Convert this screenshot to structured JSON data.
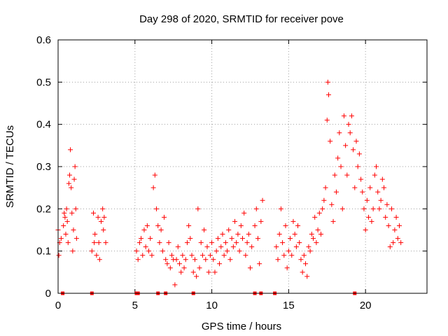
{
  "chart_data": {
    "type": "scatter",
    "title": "Day 298 of 2020, SRMTID for receiver pove",
    "xlabel": "GPS time / hours",
    "ylabel": "SRMTID / TECUs",
    "xlim": [
      0,
      24
    ],
    "ylim": [
      0,
      0.6
    ],
    "xticks": [
      0,
      5,
      10,
      15,
      20
    ],
    "xtick_labels": [
      "0",
      "5",
      "10",
      "15",
      "20"
    ],
    "yticks": [
      0,
      0.1,
      0.2,
      0.3,
      0.4,
      0.5,
      0.6
    ],
    "ytick_labels": [
      "0",
      "0.1",
      "0.2",
      "0.3",
      "0.4",
      "0.5",
      "0.6"
    ],
    "grid": true,
    "legend": "none",
    "marker": "+",
    "color": "#ff0000",
    "series": [
      {
        "name": "SRMTID",
        "points": [
          [
            0.0,
            0.15
          ],
          [
            0.05,
            0.09
          ],
          [
            0.1,
            0.12
          ],
          [
            0.2,
            0.13
          ],
          [
            0.35,
            0.16
          ],
          [
            0.4,
            0.19
          ],
          [
            0.45,
            0.18
          ],
          [
            0.5,
            0.14
          ],
          [
            0.55,
            0.2
          ],
          [
            0.6,
            0.17
          ],
          [
            0.65,
            0.12
          ],
          [
            0.7,
            0.26
          ],
          [
            0.75,
            0.28
          ],
          [
            0.8,
            0.34
          ],
          [
            0.85,
            0.25
          ],
          [
            0.9,
            0.19
          ],
          [
            0.95,
            0.1
          ],
          [
            1.0,
            0.15
          ],
          [
            1.05,
            0.27
          ],
          [
            1.1,
            0.3
          ],
          [
            1.15,
            0.2
          ],
          [
            1.2,
            0.13
          ],
          [
            2.2,
            0.1
          ],
          [
            2.3,
            0.19
          ],
          [
            2.35,
            0.12
          ],
          [
            2.4,
            0.14
          ],
          [
            2.5,
            0.09
          ],
          [
            2.6,
            0.18
          ],
          [
            2.65,
            0.12
          ],
          [
            2.7,
            0.08
          ],
          [
            2.8,
            0.17
          ],
          [
            2.9,
            0.2
          ],
          [
            2.95,
            0.15
          ],
          [
            3.0,
            0.18
          ],
          [
            3.1,
            0.12
          ],
          [
            5.1,
            0.1
          ],
          [
            5.2,
            0.08
          ],
          [
            5.3,
            0.12
          ],
          [
            5.4,
            0.13
          ],
          [
            5.5,
            0.09
          ],
          [
            5.6,
            0.15
          ],
          [
            5.7,
            0.11
          ],
          [
            5.8,
            0.16
          ],
          [
            5.9,
            0.1
          ],
          [
            6.0,
            0.13
          ],
          [
            6.1,
            0.09
          ],
          [
            6.2,
            0.25
          ],
          [
            6.3,
            0.28
          ],
          [
            6.4,
            0.2
          ],
          [
            6.5,
            0.16
          ],
          [
            6.6,
            0.12
          ],
          [
            6.7,
            0.15
          ],
          [
            6.8,
            0.1
          ],
          [
            6.9,
            0.18
          ],
          [
            7.0,
            0.08
          ],
          [
            7.1,
            0.07
          ],
          [
            7.2,
            0.12
          ],
          [
            7.3,
            0.06
          ],
          [
            7.4,
            0.09
          ],
          [
            7.5,
            0.08
          ],
          [
            7.6,
            0.02
          ],
          [
            7.7,
            0.08
          ],
          [
            7.8,
            0.11
          ],
          [
            7.9,
            0.07
          ],
          [
            8.0,
            0.05
          ],
          [
            8.1,
            0.09
          ],
          [
            8.2,
            0.06
          ],
          [
            8.3,
            0.08
          ],
          [
            8.4,
            0.12
          ],
          [
            8.5,
            0.16
          ],
          [
            8.6,
            0.13
          ],
          [
            8.7,
            0.09
          ],
          [
            8.8,
            0.05
          ],
          [
            8.9,
            0.08
          ],
          [
            9.0,
            0.04
          ],
          [
            9.1,
            0.2
          ],
          [
            9.2,
            0.06
          ],
          [
            9.3,
            0.12
          ],
          [
            9.4,
            0.09
          ],
          [
            9.5,
            0.15
          ],
          [
            9.6,
            0.08
          ],
          [
            9.7,
            0.11
          ],
          [
            9.8,
            0.05
          ],
          [
            9.9,
            0.09
          ],
          [
            10.0,
            0.12
          ],
          [
            10.1,
            0.08
          ],
          [
            10.2,
            0.05
          ],
          [
            10.3,
            0.1
          ],
          [
            10.4,
            0.13
          ],
          [
            10.5,
            0.07
          ],
          [
            10.6,
            0.11
          ],
          [
            10.7,
            0.14
          ],
          [
            10.8,
            0.09
          ],
          [
            10.9,
            0.12
          ],
          [
            11.0,
            0.1
          ],
          [
            11.1,
            0.15
          ],
          [
            11.2,
            0.08
          ],
          [
            11.3,
            0.13
          ],
          [
            11.4,
            0.11
          ],
          [
            11.5,
            0.17
          ],
          [
            11.6,
            0.12
          ],
          [
            11.7,
            0.14
          ],
          [
            11.8,
            0.1
          ],
          [
            11.9,
            0.16
          ],
          [
            12.0,
            0.13
          ],
          [
            12.1,
            0.19
          ],
          [
            12.2,
            0.09
          ],
          [
            12.3,
            0.12
          ],
          [
            12.4,
            0.14
          ],
          [
            12.5,
            0.06
          ],
          [
            12.6,
            0.11
          ],
          [
            12.8,
            0.16
          ],
          [
            12.9,
            0.2
          ],
          [
            13.0,
            0.13
          ],
          [
            13.1,
            0.07
          ],
          [
            13.2,
            0.17
          ],
          [
            13.3,
            0.22
          ],
          [
            14.2,
            0.11
          ],
          [
            14.3,
            0.08
          ],
          [
            14.4,
            0.14
          ],
          [
            14.5,
            0.2
          ],
          [
            14.6,
            0.12
          ],
          [
            14.7,
            0.09
          ],
          [
            14.8,
            0.16
          ],
          [
            14.9,
            0.06
          ],
          [
            15.0,
            0.1
          ],
          [
            15.1,
            0.13
          ],
          [
            15.2,
            0.09
          ],
          [
            15.3,
            0.17
          ],
          [
            15.4,
            0.14
          ],
          [
            15.5,
            0.11
          ],
          [
            15.6,
            0.16
          ],
          [
            15.7,
            0.12
          ],
          [
            15.8,
            0.08
          ],
          [
            15.9,
            0.05
          ],
          [
            16.0,
            0.09
          ],
          [
            16.1,
            0.07
          ],
          [
            16.2,
            0.04
          ],
          [
            16.3,
            0.11
          ],
          [
            16.4,
            0.1
          ],
          [
            16.5,
            0.14
          ],
          [
            16.6,
            0.13
          ],
          [
            16.7,
            0.18
          ],
          [
            16.8,
            0.12
          ],
          [
            16.9,
            0.15
          ],
          [
            17.0,
            0.19
          ],
          [
            17.1,
            0.14
          ],
          [
            17.2,
            0.2
          ],
          [
            17.3,
            0.22
          ],
          [
            17.4,
            0.25
          ],
          [
            17.5,
            0.41
          ],
          [
            17.55,
            0.5
          ],
          [
            17.6,
            0.47
          ],
          [
            17.7,
            0.36
          ],
          [
            17.8,
            0.21
          ],
          [
            17.9,
            0.17
          ],
          [
            18.0,
            0.28
          ],
          [
            18.1,
            0.24
          ],
          [
            18.2,
            0.32
          ],
          [
            18.3,
            0.38
          ],
          [
            18.4,
            0.3
          ],
          [
            18.5,
            0.2
          ],
          [
            18.6,
            0.42
          ],
          [
            18.7,
            0.35
          ],
          [
            18.8,
            0.28
          ],
          [
            18.9,
            0.4
          ],
          [
            19.0,
            0.38
          ],
          [
            19.1,
            0.42
          ],
          [
            19.2,
            0.34
          ],
          [
            19.3,
            0.25
          ],
          [
            19.4,
            0.36
          ],
          [
            19.5,
            0.3
          ],
          [
            19.6,
            0.33
          ],
          [
            19.7,
            0.27
          ],
          [
            19.8,
            0.24
          ],
          [
            19.9,
            0.2
          ],
          [
            20.0,
            0.15
          ],
          [
            20.1,
            0.22
          ],
          [
            20.2,
            0.18
          ],
          [
            20.3,
            0.25
          ],
          [
            20.4,
            0.17
          ],
          [
            20.5,
            0.2
          ],
          [
            20.6,
            0.28
          ],
          [
            20.7,
            0.3
          ],
          [
            20.8,
            0.24
          ],
          [
            20.9,
            0.2
          ],
          [
            21.0,
            0.22
          ],
          [
            21.1,
            0.27
          ],
          [
            21.2,
            0.25
          ],
          [
            21.3,
            0.18
          ],
          [
            21.4,
            0.21
          ],
          [
            21.5,
            0.16
          ],
          [
            21.6,
            0.11
          ],
          [
            21.7,
            0.2
          ],
          [
            21.8,
            0.12
          ],
          [
            21.9,
            0.15
          ],
          [
            22.0,
            0.18
          ],
          [
            22.1,
            0.13
          ],
          [
            22.2,
            0.16
          ],
          [
            22.3,
            0.12
          ]
        ]
      }
    ],
    "zero_markers": {
      "name": "zero-value samples",
      "x": [
        0.3,
        2.2,
        5.1,
        5.2,
        6.5,
        7.0,
        8.8,
        12.8,
        13.2,
        14.1,
        19.3
      ]
    }
  }
}
